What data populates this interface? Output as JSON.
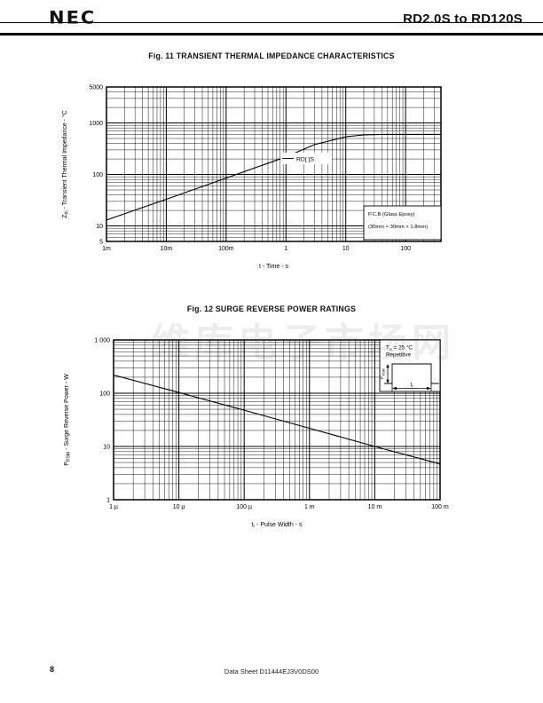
{
  "header": {
    "logo": "NEC",
    "title": "RD2.0S to RD120S"
  },
  "figure11": {
    "title": "Fig. 11  TRANSIENT THERMAL IMPEDANCE CHARACTERISTICS",
    "callout": "RD[ ]S",
    "inset_line1": "P.C.B (Glass Epoxy)",
    "inset_line2": "(30mm × 30mm × 1.8mm)"
  },
  "figure12": {
    "title": "Fig. 12  SURGE REVERSE POWER RATINGS",
    "condition_line1_parts": [
      [
        "T",
        ""
      ],
      [
        "A",
        "sub"
      ],
      [
        " = 25 °C",
        ""
      ]
    ],
    "condition_line2": "Repetitive",
    "pulse_height_label_parts": [
      [
        "P",
        ""
      ],
      [
        "RSM",
        "sub"
      ]
    ],
    "pulse_width_label_parts": [
      [
        "t",
        ""
      ],
      [
        "r",
        "sub"
      ]
    ]
  },
  "chart_data": [
    {
      "type": "line",
      "title": "Fig. 11  TRANSIENT THERMAL IMPEDANCE CHARACTERISTICS",
      "xlabel": "t - Time - s",
      "xlabel_parts": [
        [
          "t - Time - s",
          ""
        ]
      ],
      "ylabel": "Zth - Transient Thermal Impedance - °C",
      "ylabel_parts": [
        [
          "Z",
          ""
        ],
        [
          "th",
          "sub"
        ],
        [
          " - Transient Thermal Impedance - °C",
          ""
        ]
      ],
      "x_scale": "log",
      "y_scale": "log",
      "grid": true,
      "legend_position": "none",
      "xlim": [
        0.001,
        390
      ],
      "ylim": [
        5,
        5000
      ],
      "x_ticks": [
        {
          "v": 0.001,
          "label": "1m"
        },
        {
          "v": 0.01,
          "label": "10m"
        },
        {
          "v": 0.1,
          "label": "100m"
        },
        {
          "v": 1,
          "label": "1"
        },
        {
          "v": 10,
          "label": "10"
        },
        {
          "v": 100,
          "label": "100"
        }
      ],
      "y_ticks": [
        {
          "v": 5,
          "label": "5"
        },
        {
          "v": 10,
          "label": "10"
        },
        {
          "v": 100,
          "label": "100"
        },
        {
          "v": 1000,
          "label": "1000"
        },
        {
          "v": 5000,
          "label": "5000"
        }
      ],
      "series": [
        {
          "name": "RD[ ]S",
          "points": [
            [
              0.001,
              13
            ],
            [
              0.01,
              33
            ],
            [
              0.1,
              85
            ],
            [
              1,
              220
            ],
            [
              3,
              380
            ],
            [
              10,
              540
            ],
            [
              20,
              585
            ],
            [
              40,
              600
            ],
            [
              390,
              600
            ]
          ]
        }
      ],
      "annotations": [
        "RD[ ]S",
        "P.C.B (Glass Epoxy)",
        "(30mm × 30mm × 1.8mm)"
      ]
    },
    {
      "type": "line",
      "title": "Fig. 12  SURGE REVERSE POWER RATINGS",
      "xlabel": "tr - Pulse Width - s",
      "xlabel_parts": [
        [
          "t",
          ""
        ],
        [
          "r",
          "sub"
        ],
        [
          " - Pulse Width - s",
          ""
        ]
      ],
      "ylabel": "PRSM - Surge Reverse Power - W",
      "ylabel_parts": [
        [
          "P",
          ""
        ],
        [
          "RSM",
          "sub"
        ],
        [
          " - Surge Reverse Power - W",
          ""
        ]
      ],
      "x_scale": "log",
      "y_scale": "log",
      "grid": true,
      "legend_position": "none",
      "xlim": [
        1e-06,
        0.1
      ],
      "ylim": [
        1,
        1000
      ],
      "x_ticks": [
        {
          "v": 1e-06,
          "label": "1 µ"
        },
        {
          "v": 1e-05,
          "label": "10 µ"
        },
        {
          "v": 0.0001,
          "label": "100 µ"
        },
        {
          "v": 0.001,
          "label": "1 m"
        },
        {
          "v": 0.01,
          "label": "10 m"
        },
        {
          "v": 0.1,
          "label": "100 m"
        }
      ],
      "y_ticks": [
        {
          "v": 1,
          "label": "1"
        },
        {
          "v": 10,
          "label": "10"
        },
        {
          "v": 100,
          "label": "100"
        },
        {
          "v": 1000,
          "label": "1 000"
        }
      ],
      "series": [
        {
          "name": "surge-reverse-power",
          "points": [
            [
              1e-06,
              220
            ],
            [
              1e-05,
              103
            ],
            [
              0.0001,
              48
            ],
            [
              0.001,
              22
            ],
            [
              0.01,
              10
            ],
            [
              0.1,
              4.7
            ]
          ]
        }
      ],
      "annotations": [
        "TA = 25 °C",
        "Repetitive",
        "PRSM",
        "tr"
      ]
    }
  ],
  "watermark": {
    "text": "维库电子市场网"
  },
  "footer": {
    "page_number": "8",
    "doc_label": "Data Sheet  D11444EJ3V0DS00"
  }
}
